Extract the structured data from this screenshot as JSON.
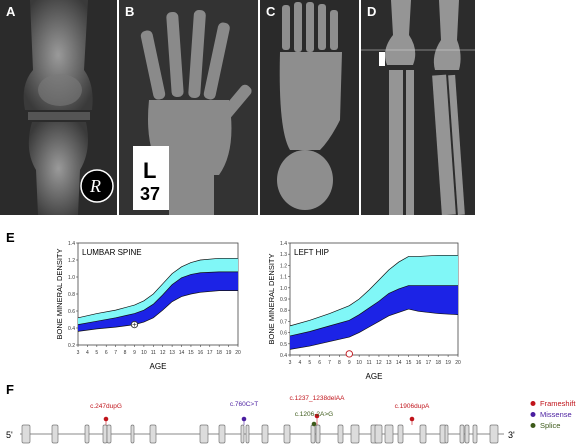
{
  "panels": {
    "a": {
      "label": "A",
      "marker": "R"
    },
    "b": {
      "label": "B",
      "marker_top": "L",
      "marker_bottom": "37"
    },
    "c": {
      "label": "C"
    },
    "d": {
      "label": "D"
    }
  },
  "section_e": {
    "label": "E"
  },
  "section_f": {
    "label": "F"
  },
  "chart_data": [
    {
      "type": "area",
      "title": "LUMBAR SPINE",
      "xlabel": "AGE",
      "ylabel": "BONE MINERAL DENSITY",
      "xlim": [
        3,
        20
      ],
      "ylim": [
        0.2,
        1.4
      ],
      "x_ticks": [
        3,
        4,
        5,
        6,
        7,
        8,
        9,
        10,
        11,
        12,
        13,
        14,
        15,
        16,
        17,
        18,
        19,
        20
      ],
      "y_ticks": [
        0.2,
        0.4,
        0.6,
        0.8,
        1.0,
        1.2,
        1.4
      ],
      "x": [
        3,
        5,
        7,
        9,
        10,
        11,
        12,
        13,
        14,
        15,
        16,
        18,
        20
      ],
      "series": [
        {
          "values": [
            0.52,
            0.57,
            0.61,
            0.67,
            0.72,
            0.8,
            0.92,
            1.04,
            1.12,
            1.17,
            1.2,
            1.22,
            1.22
          ]
        },
        {
          "values": [
            0.44,
            0.48,
            0.52,
            0.57,
            0.61,
            0.68,
            0.79,
            0.91,
            0.99,
            1.03,
            1.05,
            1.06,
            1.06
          ]
        },
        {
          "values": [
            0.36,
            0.39,
            0.41,
            0.44,
            0.47,
            0.52,
            0.61,
            0.71,
            0.77,
            0.8,
            0.82,
            0.84,
            0.84
          ]
        }
      ],
      "patient_point": {
        "x": 9,
        "y": 0.44
      },
      "band_colors": {
        "upper": "#80f7f7",
        "lower": "#1c23e6"
      }
    },
    {
      "type": "area",
      "title": "LEFT HIP",
      "xlabel": "AGE",
      "ylabel": "BONE MINERAL DENSITY",
      "xlim": [
        3,
        20
      ],
      "ylim": [
        0.4,
        1.4
      ],
      "x_ticks": [
        3,
        4,
        5,
        6,
        7,
        8,
        9,
        10,
        11,
        12,
        13,
        14,
        15,
        16,
        17,
        18,
        19,
        20
      ],
      "y_ticks": [
        0.4,
        0.5,
        0.6,
        0.7,
        0.8,
        0.9,
        1.0,
        1.1,
        1.2,
        1.3,
        1.4
      ],
      "x": [
        3,
        5,
        7,
        9,
        10,
        11,
        12,
        13,
        14,
        15,
        16,
        18,
        20
      ],
      "series": [
        {
          "values": [
            0.66,
            0.71,
            0.77,
            0.84,
            0.9,
            0.98,
            1.07,
            1.16,
            1.23,
            1.28,
            1.28,
            1.29,
            1.29
          ]
        },
        {
          "values": [
            0.57,
            0.61,
            0.66,
            0.71,
            0.76,
            0.82,
            0.88,
            0.95,
            0.99,
            1.02,
            1.02,
            1.02,
            1.02
          ]
        },
        {
          "values": [
            0.45,
            0.48,
            0.52,
            0.56,
            0.6,
            0.65,
            0.7,
            0.75,
            0.78,
            0.81,
            0.79,
            0.77,
            0.76
          ]
        }
      ],
      "patient_point": {
        "x": 9,
        "y": 0.41
      },
      "band_colors": {
        "upper": "#80f7f7",
        "lower": "#1c23e6"
      }
    }
  ],
  "gene": {
    "five_prime": "5'",
    "three_prime": "3'",
    "mutations": [
      {
        "label": "c.247dupG",
        "type": "frameshift"
      },
      {
        "label": "c.760C>T",
        "type": "missense"
      },
      {
        "label": "c.1237_1238delAA",
        "type": "frameshift"
      },
      {
        "label": "c.1206-2A>G",
        "type": "splice"
      },
      {
        "label": "c.1906dupA",
        "type": "frameshift"
      }
    ],
    "legend": [
      {
        "label": "Frameshift",
        "color": "#c0141b"
      },
      {
        "label": "Missense",
        "color": "#4a1ea0"
      },
      {
        "label": "Splice",
        "color": "#3d5a1a"
      }
    ],
    "colors": {
      "frameshift": "#c0141b",
      "missense": "#4a1ea0",
      "splice": "#3d5a1a",
      "exon_fill": "#dcdcdc"
    }
  }
}
